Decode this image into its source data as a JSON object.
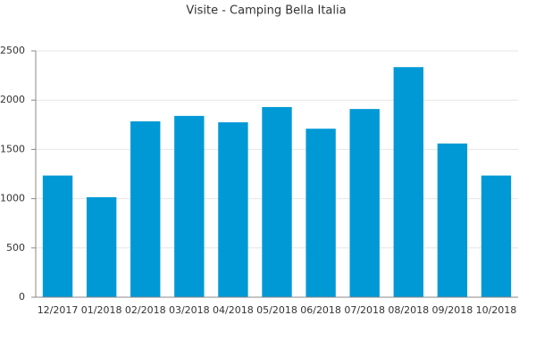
{
  "chart_data": {
    "type": "bar",
    "title": "Visite - Camping Bella Italia",
    "categories": [
      "12/2017",
      "01/2018",
      "02/2018",
      "03/2018",
      "04/2018",
      "05/2018",
      "06/2018",
      "07/2018",
      "08/2018",
      "09/2018",
      "10/2018"
    ],
    "values": [
      1235,
      1015,
      1785,
      1840,
      1775,
      1930,
      1710,
      1910,
      2335,
      1560,
      1235
    ],
    "color": "#0099d5",
    "ylim": [
      0,
      2500
    ],
    "yticks": [
      0,
      500,
      1000,
      1500,
      2000,
      2500
    ],
    "grid": true
  }
}
